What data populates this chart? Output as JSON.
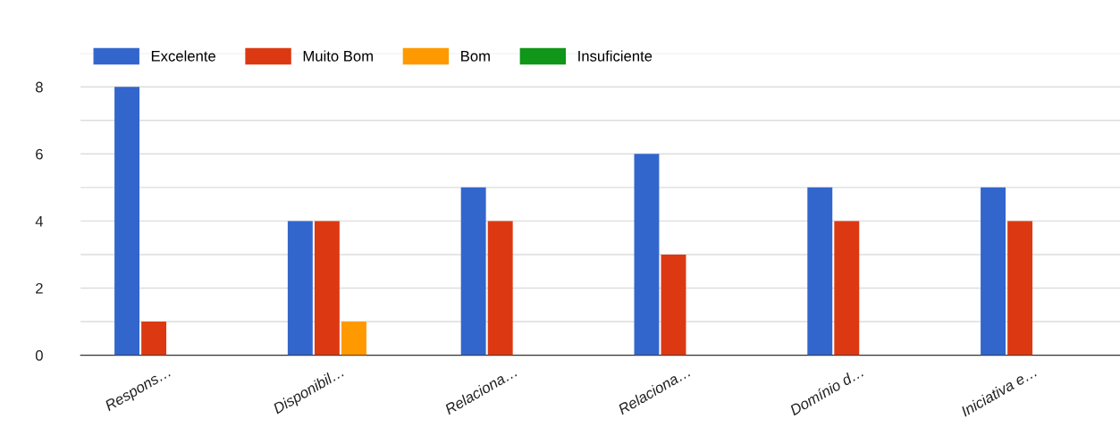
{
  "chart_data": {
    "type": "bar",
    "categories": [
      "Respons…",
      "Disponibil…",
      "Relaciona…",
      "Relaciona…",
      "Domínio d…",
      "Iniciativa e…"
    ],
    "series": [
      {
        "name": "Excelente",
        "color": "#3366cc",
        "values": [
          8,
          4,
          5,
          6,
          5,
          5
        ]
      },
      {
        "name": "Muito Bom",
        "color": "#dc3912",
        "values": [
          1,
          4,
          4,
          3,
          4,
          4
        ]
      },
      {
        "name": "Bom",
        "color": "#ff9900",
        "values": [
          0,
          1,
          0,
          0,
          0,
          0
        ]
      },
      {
        "name": "Insuficiente",
        "color": "#109618",
        "values": [
          0,
          0,
          0,
          0,
          0,
          0
        ]
      }
    ],
    "ylim": [
      0,
      9
    ],
    "yticks": [
      0,
      {
        "value": 1,
        "label": null
      },
      2,
      {
        "value": 3,
        "label": null
      },
      4,
      {
        "value": 5,
        "label": null
      },
      6,
      {
        "value": 7,
        "label": null
      },
      8,
      {
        "value": 9,
        "label": null
      }
    ],
    "grid": "y",
    "legend": "top left"
  }
}
